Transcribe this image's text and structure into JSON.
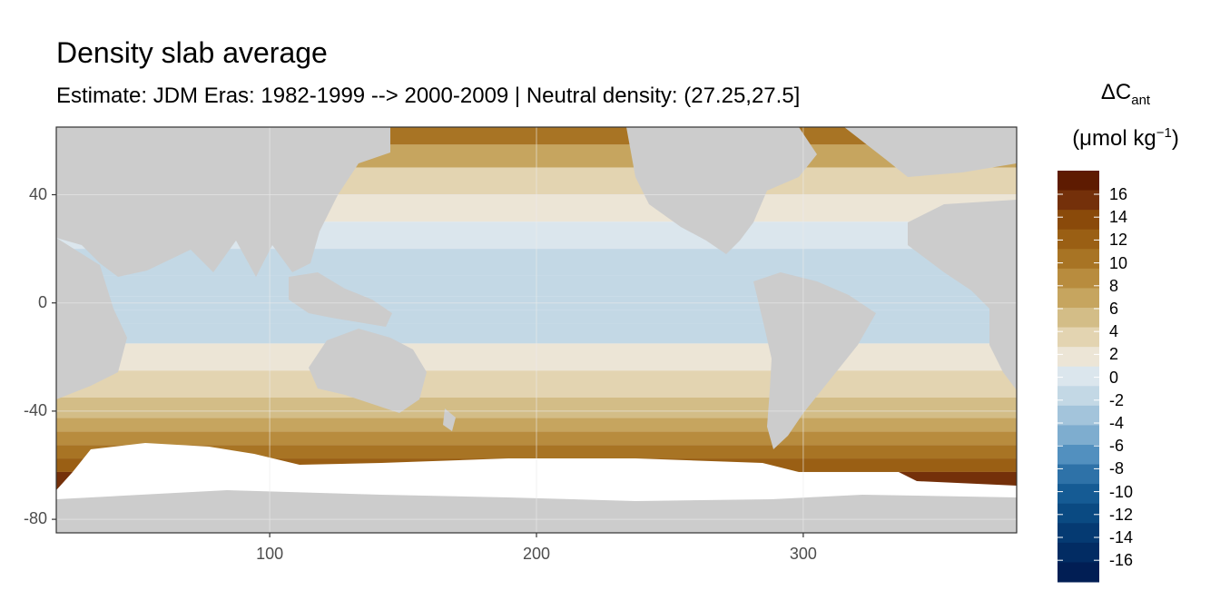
{
  "title": "Density slab average",
  "subtitle": "Estimate: JDM Eras: 1982-1999 --> 2000-2009 | Neutral density: (27.25,27.5]",
  "legend": {
    "title_symbol": "ΔC",
    "title_subscript": "ant",
    "unit_prefix": "(μmol kg",
    "unit_superscript": "−1",
    "unit_suffix": ")",
    "labels": [
      "16",
      "14",
      "12",
      "10",
      "8",
      "6",
      "4",
      "2",
      "0",
      "-2",
      "-4",
      "-6",
      "-8",
      "-10",
      "-12",
      "-14",
      "-16"
    ],
    "colors": [
      "#5e1b01",
      "#74300a",
      "#8a4a0a",
      "#9a5f14",
      "#a87424",
      "#b88c3e",
      "#c6a55f",
      "#d3bd87",
      "#e3d4b1",
      "#ece5d6",
      "#dbe6ed",
      "#c3d8e5",
      "#a3c4db",
      "#7eadcf",
      "#5290bf",
      "#2e72a8",
      "#155b94",
      "#0a4a82",
      "#053a72",
      "#022c63",
      "#011e54"
    ]
  },
  "chart_data": {
    "type": "heatmap",
    "title": "Density slab average",
    "subtitle": "Estimate: JDM Eras: 1982-1999 --> 2000-2009 | Neutral density: (27.25,27.5]",
    "xlabel": "",
    "ylabel": "",
    "xlim": [
      20,
      380
    ],
    "ylim": [
      -85,
      65
    ],
    "x_ticks": [
      100,
      200,
      300
    ],
    "y_ticks": [
      40,
      0,
      -40,
      -80
    ],
    "grid": true,
    "legend_position": "right",
    "value_range": [
      -16,
      16
    ],
    "land_color": "#cccccc",
    "nodata_color": "#ffffff",
    "zonal_profile": [
      {
        "lat": 62,
        "value": 9
      },
      {
        "lat": 55,
        "value": 7
      },
      {
        "lat": 45,
        "value": 4
      },
      {
        "lat": 35,
        "value": 1
      },
      {
        "lat": 25,
        "value": 0
      },
      {
        "lat": 15,
        "value": -1
      },
      {
        "lat": 5,
        "value": -2
      },
      {
        "lat": 0,
        "value": -2
      },
      {
        "lat": -5,
        "value": -2
      },
      {
        "lat": -10,
        "value": -1
      },
      {
        "lat": -20,
        "value": 1
      },
      {
        "lat": -30,
        "value": 3
      },
      {
        "lat": -40,
        "value": 5
      },
      {
        "lat": -45,
        "value": 7
      },
      {
        "lat": -50,
        "value": 8
      },
      {
        "lat": -55,
        "value": 10
      },
      {
        "lat": -60,
        "value": 12
      },
      {
        "lat": -65,
        "value": 14
      }
    ]
  }
}
